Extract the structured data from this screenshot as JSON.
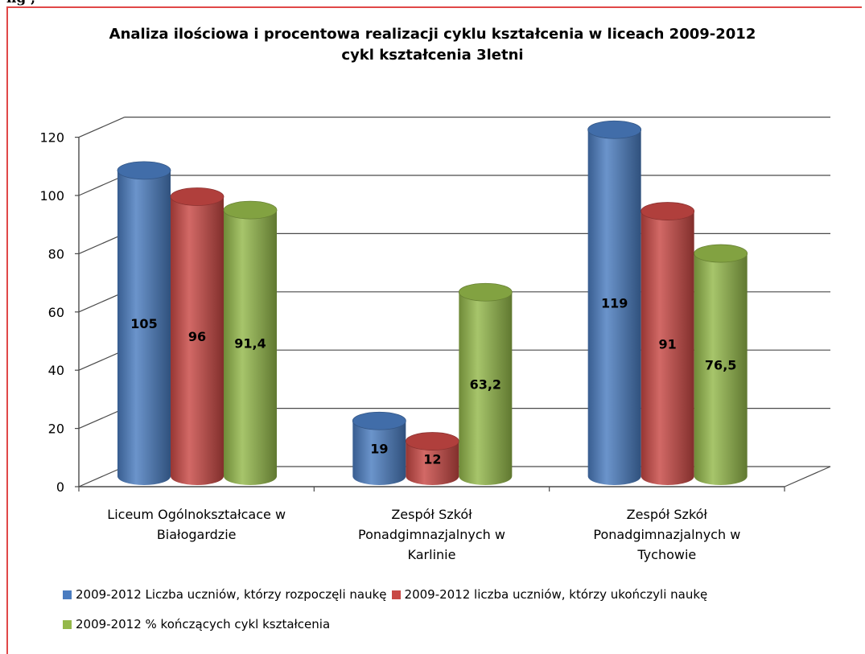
{
  "header_fragment": "ng       ,",
  "chart_data": {
    "type": "bar",
    "title": "Analiza ilościowa i procentowa realizacji cyklu kształcenia w liceach 2009-2012",
    "subtitle": "cykl kształcenia 3letni",
    "categories": [
      [
        "Liceum Ogólnokształcace w",
        "Białogardzie"
      ],
      [
        "Zespół Szkół",
        "Ponadgimnazjalnych w",
        "Karlinie"
      ],
      [
        "Zespół Szkół",
        "Ponadgimnazjalnych w",
        "Tychowie"
      ]
    ],
    "series": [
      {
        "name": "2009-2012 Liczba uczniów, którzy rozpoczęli naukę",
        "color": "#4a7cc0",
        "values": [
          105,
          19,
          119
        ],
        "labels": [
          "105",
          "19",
          "119"
        ]
      },
      {
        "name": "2009-2012 liczba uczniów, którzy ukończyli naukę",
        "color": "#c84844",
        "values": [
          96,
          12,
          91
        ],
        "labels": [
          "96",
          "12",
          "91"
        ]
      },
      {
        "name": "2009-2012 % kończących cykl kształcenia",
        "color": "#94b84a",
        "values": [
          91.4,
          63.2,
          76.5
        ],
        "labels": [
          "91,4",
          "63,2",
          "76,5"
        ]
      }
    ],
    "y_ticks": [
      "0",
      "20",
      "40",
      "60",
      "80",
      "100",
      "120"
    ],
    "ylim": [
      0,
      120
    ],
    "grid": true,
    "style": "3d-cylinder",
    "legend_position": "bottom"
  }
}
